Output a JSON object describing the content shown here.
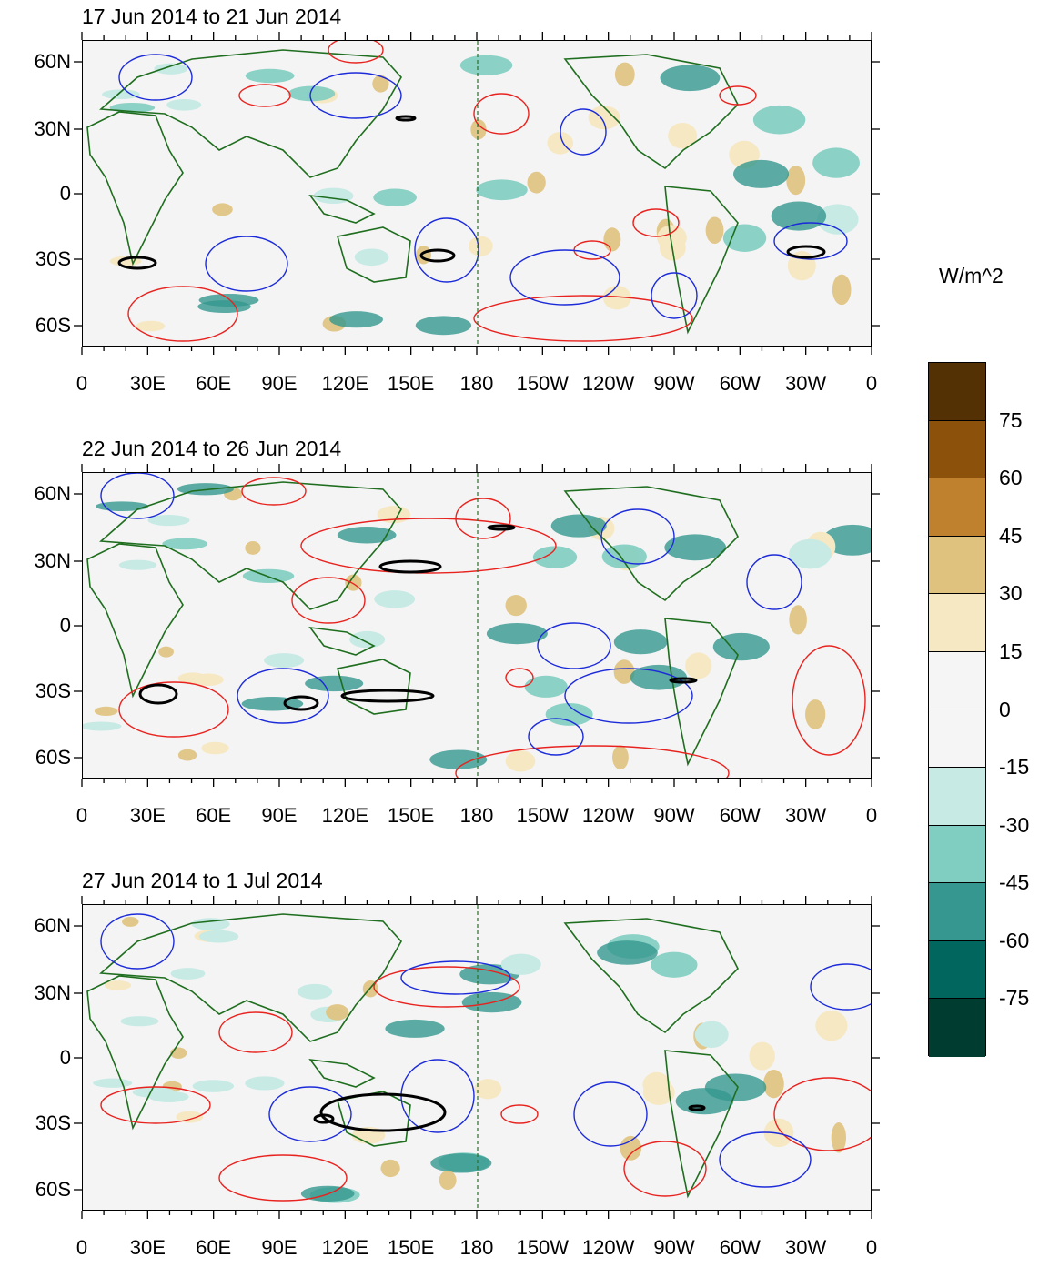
{
  "units_label": "W/m^2",
  "panels": [
    {
      "title": "17 Jun 2014 to 21 Jun 2014"
    },
    {
      "title": "22 Jun 2014 to 26 Jun 2014"
    },
    {
      "title": "27 Jun 2014 to 1 Jul 2014"
    }
  ],
  "lat_labels": [
    "60N",
    "30N",
    "0",
    "30S",
    "60S"
  ],
  "lon_labels": [
    "0",
    "30E",
    "60E",
    "90E",
    "120E",
    "150E",
    "180",
    "150W",
    "120W",
    "90W",
    "60W",
    "30W",
    "0"
  ],
  "colorbar": {
    "labels": [
      "75",
      "60",
      "45",
      "30",
      "15",
      "0",
      "-15",
      "-30",
      "-45",
      "-60",
      "-75"
    ],
    "colors": [
      "#543005",
      "#8c510a",
      "#bf812d",
      "#dfc27d",
      "#f6e8c3",
      "#f5f5f5",
      "#f5f5f5",
      "#c7eae5",
      "#80cdc1",
      "#35978f",
      "#01665e",
      "#003c30"
    ]
  },
  "colors": {
    "positive_contour": "#e8231f",
    "negative_contour": "#1c2bd9",
    "bold_contour": "#000000",
    "coastline": "#1f6e1f"
  }
}
